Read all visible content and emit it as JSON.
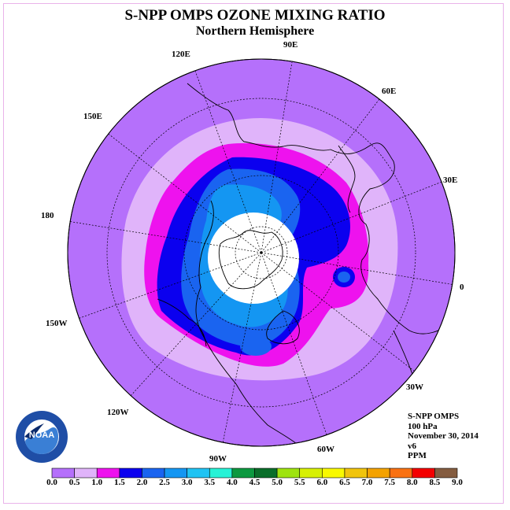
{
  "title": "S-NPP OMPS OZONE MIXING RATIO",
  "subtitle": "Northern Hemisphere",
  "longitude_labels": [
    "90E",
    "60E",
    "30E",
    "0",
    "30W",
    "60W",
    "90W",
    "120W",
    "150W",
    "180",
    "150E",
    "120E"
  ],
  "info": {
    "instrument": "S-NPP OMPS",
    "level": "100 hPa",
    "date": "November 30, 2014",
    "version": "v6",
    "units": "PPM"
  },
  "logo": {
    "name": "noaa-logo",
    "text": "NOAA"
  },
  "colorbar": {
    "ticks": [
      "0.0",
      "0.5",
      "1.0",
      "1.5",
      "2.0",
      "2.5",
      "3.0",
      "3.5",
      "4.0",
      "4.5",
      "5.0",
      "5.5",
      "6.0",
      "6.5",
      "7.0",
      "7.5",
      "8.0",
      "8.5",
      "9.0"
    ],
    "colors": [
      "#b570fb",
      "#e0b4fa",
      "#ee12ee",
      "#0b00ef",
      "#1a64f0",
      "#1496f2",
      "#20c3f3",
      "#27f2d6",
      "#0d9940",
      "#0a6e2a",
      "#9ee30f",
      "#d7f004",
      "#f9f900",
      "#f1c40d",
      "#f4a200",
      "#f97112",
      "#f40000",
      "#845c40"
    ]
  },
  "map_layers": {
    "outer_color": "#b570fb",
    "no_data_color": "#ffffff"
  }
}
